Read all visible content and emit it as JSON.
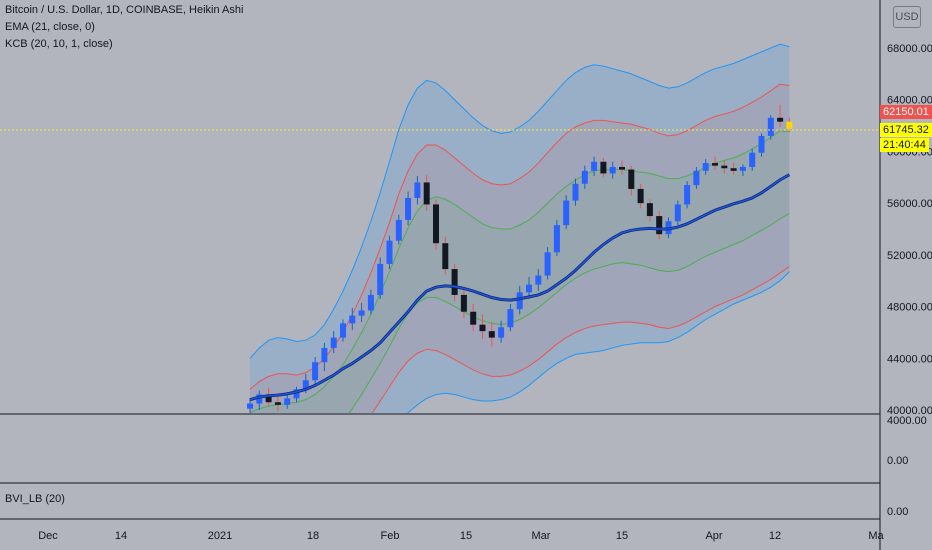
{
  "legend": {
    "main": "Bitcoin / U.S. Dollar, 1D, COINBASE, Heikin Ashi",
    "ema": "EMA (21, close, 0)",
    "kcb": "KCB (20, 10, 1, close)",
    "bvi": "BVI_LB (20)"
  },
  "currency_label": "USD",
  "price_tags": {
    "close": "62150.01",
    "last": "61745.32",
    "countdown": "21:40:44"
  },
  "colors": {
    "up": "#2962ff",
    "down": "#131722",
    "ema": "#1e53e5",
    "kcb_outer": "#2196f3",
    "kcb_mid": "#ef5350",
    "kcb_inner": "#4caf50",
    "crosshair": "#ffeb3b",
    "price_tag_bg": "#ef5350",
    "last_tag_bg": "#ffff00"
  },
  "chart_data": {
    "type": "candlestick",
    "price_axis": {
      "min": 40000,
      "max": 68000,
      "ticks": [
        "68000.00",
        "64000.00",
        "60000.00",
        "56000.00",
        "52000.00",
        "48000.00",
        "44000.00",
        "40000.00"
      ]
    },
    "sub_axis_1_ticks": [
      "4000.00",
      "0.00"
    ],
    "sub_axis_2_ticks": [
      "0.00"
    ],
    "time_labels": [
      "Dec",
      "14",
      "2021",
      "18",
      "Feb",
      "15",
      "Mar",
      "15",
      "Apr",
      "12",
      "Ma"
    ],
    "ohlc": [
      [
        40100,
        40900,
        39800,
        40500
      ],
      [
        40500,
        41500,
        40000,
        41200
      ],
      [
        41200,
        41700,
        40300,
        40600
      ],
      [
        40600,
        41100,
        39900,
        40400
      ],
      [
        40400,
        41200,
        40100,
        40900
      ],
      [
        40900,
        41800,
        40600,
        41600
      ],
      [
        41600,
        42800,
        41300,
        42300
      ],
      [
        42300,
        44100,
        42000,
        43700
      ],
      [
        43700,
        45200,
        43000,
        44800
      ],
      [
        44800,
        46100,
        44400,
        45600
      ],
      [
        45600,
        47000,
        45300,
        46700
      ],
      [
        46700,
        47900,
        46200,
        47300
      ],
      [
        47300,
        48300,
        46800,
        47700
      ],
      [
        47700,
        49300,
        47400,
        48900
      ],
      [
        48900,
        51800,
        48600,
        51300
      ],
      [
        51300,
        53500,
        50900,
        53100
      ],
      [
        53100,
        55100,
        52800,
        54700
      ],
      [
        54700,
        56900,
        54300,
        56400
      ],
      [
        56400,
        58100,
        55900,
        57600
      ],
      [
        57600,
        58200,
        55400,
        55900
      ],
      [
        55900,
        56300,
        52400,
        52900
      ],
      [
        52900,
        53400,
        50500,
        50900
      ],
      [
        50900,
        51300,
        48400,
        48900
      ],
      [
        48900,
        49300,
        47100,
        47600
      ],
      [
        47600,
        48200,
        46100,
        46600
      ],
      [
        46600,
        47400,
        45500,
        46100
      ],
      [
        46100,
        46800,
        44900,
        45600
      ],
      [
        45600,
        46900,
        45200,
        46400
      ],
      [
        46400,
        48200,
        46100,
        47800
      ],
      [
        47800,
        49600,
        47400,
        49100
      ],
      [
        49100,
        50300,
        48600,
        49700
      ],
      [
        49700,
        50900,
        49200,
        50400
      ],
      [
        50400,
        52600,
        50100,
        52200
      ],
      [
        52200,
        54700,
        51900,
        54300
      ],
      [
        54300,
        56600,
        54000,
        56200
      ],
      [
        56200,
        57900,
        55800,
        57500
      ],
      [
        57500,
        58900,
        57100,
        58500
      ],
      [
        58500,
        59600,
        58100,
        59200
      ],
      [
        59200,
        59500,
        58000,
        58300
      ],
      [
        58300,
        59200,
        57900,
        58800
      ],
      [
        58800,
        59300,
        58200,
        58600
      ],
      [
        58600,
        58900,
        56600,
        57100
      ],
      [
        57100,
        57500,
        55600,
        56000
      ],
      [
        56000,
        56300,
        54600,
        55000
      ],
      [
        55000,
        55400,
        53200,
        53600
      ],
      [
        53600,
        54900,
        53300,
        54600
      ],
      [
        54600,
        56200,
        54300,
        55900
      ],
      [
        55900,
        57700,
        55600,
        57400
      ],
      [
        57400,
        58800,
        57100,
        58500
      ],
      [
        58500,
        59400,
        58200,
        59100
      ],
      [
        59100,
        59600,
        58600,
        58900
      ],
      [
        58900,
        59300,
        58300,
        58700
      ],
      [
        58700,
        59100,
        58200,
        58500
      ],
      [
        58500,
        59000,
        58100,
        58800
      ],
      [
        58800,
        60200,
        58500,
        59900
      ],
      [
        59900,
        61400,
        59600,
        61200
      ],
      [
        61200,
        62800,
        60900,
        62600
      ],
      [
        62600,
        63600,
        61900,
        62300
      ],
      [
        62300,
        62600,
        61500,
        61745
      ]
    ],
    "ema": [
      40800,
      41000,
      41100,
      41150,
      41250,
      41400,
      41600,
      41900,
      42300,
      42700,
      43200,
      43600,
      44100,
      44600,
      45200,
      46000,
      46800,
      47600,
      48500,
      49200,
      49500,
      49600,
      49550,
      49400,
      49200,
      48950,
      48700,
      48550,
      48500,
      48600,
      48750,
      48900,
      49200,
      49700,
      50200,
      50800,
      51500,
      52200,
      52800,
      53300,
      53700,
      53900,
      54000,
      54050,
      54000,
      54000,
      54150,
      54400,
      54750,
      55100,
      55450,
      55700,
      55950,
      56150,
      56400,
      56800,
      57300,
      57800,
      58200
    ],
    "kcb_outer_upper": [
      44000,
      44800,
      45400,
      45600,
      45500,
      45300,
      45400,
      45800,
      46600,
      47800,
      49200,
      50800,
      52600,
      54600,
      56800,
      59200,
      61700,
      63600,
      64900,
      65500,
      65300,
      64700,
      64000,
      63300,
      62600,
      62000,
      61600,
      61400,
      61500,
      61900,
      62400,
      63100,
      63900,
      64700,
      65500,
      66100,
      66500,
      66700,
      66600,
      66400,
      66200,
      66000,
      65700,
      65400,
      65100,
      64900,
      65000,
      65300,
      65700,
      66100,
      66400,
      66600,
      66800,
      67100,
      67400,
      67700,
      68000,
      68300,
      68100
    ],
    "kcb_mid_upper": [
      41600,
      42200,
      42600,
      42800,
      42800,
      42700,
      42900,
      43300,
      44000,
      44900,
      46000,
      47400,
      48900,
      50600,
      52500,
      54500,
      56700,
      58500,
      59800,
      60500,
      60500,
      60100,
      59500,
      58900,
      58300,
      57800,
      57500,
      57400,
      57500,
      57900,
      58400,
      59100,
      59900,
      60700,
      61400,
      61900,
      62200,
      62400,
      62400,
      62300,
      62200,
      62100,
      61900,
      61700,
      61400,
      61200,
      61300,
      61600,
      62000,
      62400,
      62700,
      62900,
      63100,
      63400,
      63800,
      64200,
      64700,
      65200,
      65100
    ],
    "kcb_inner_upper": [
      39800,
      40100,
      40300,
      40400,
      40500,
      40600,
      40800,
      41200,
      41800,
      42600,
      43500,
      44700,
      46000,
      47400,
      49000,
      50700,
      52500,
      54100,
      55400,
      56200,
      56500,
      56300,
      55900,
      55400,
      54900,
      54400,
      54100,
      54000,
      54000,
      54300,
      54700,
      55300,
      56000,
      56700,
      57300,
      57800,
      58200,
      58500,
      58600,
      58600,
      58600,
      58500,
      58400,
      58300,
      58100,
      57900,
      57900,
      58100,
      58400,
      58800,
      59100,
      59300,
      59500,
      59800,
      60200,
      60600,
      61100,
      61600,
      61500
    ],
    "kcb_inner_lower": [
      36000,
      36200,
      36300,
      36400,
      36500,
      36600,
      36800,
      37100,
      37600,
      38300,
      39100,
      40100,
      41200,
      42400,
      43600,
      44900,
      46300,
      47500,
      48300,
      48700,
      48700,
      48400,
      48000,
      47600,
      47200,
      46900,
      46700,
      46600,
      46700,
      47000,
      47400,
      47900,
      48500,
      49100,
      49700,
      50200,
      50600,
      50900,
      51100,
      51300,
      51400,
      51300,
      51200,
      51000,
      50800,
      50700,
      50800,
      51100,
      51500,
      51900,
      52200,
      52500,
      52800,
      53100,
      53500,
      53900,
      54300,
      54800,
      55200
    ],
    "kcb_mid_lower": [
      33800,
      33900,
      33900,
      33900,
      34000,
      34100,
      34300,
      34600,
      35100,
      35700,
      36500,
      37500,
      38500,
      39600,
      40700,
      41800,
      42900,
      43800,
      44400,
      44700,
      44600,
      44300,
      43900,
      43500,
      43100,
      42800,
      42600,
      42600,
      42700,
      43000,
      43400,
      43900,
      44500,
      45100,
      45600,
      46000,
      46300,
      46500,
      46600,
      46700,
      46800,
      46800,
      46700,
      46600,
      46400,
      46300,
      46500,
      46800,
      47200,
      47600,
      48000,
      48300,
      48600,
      48900,
      49300,
      49700,
      50100,
      50600,
      51100
    ],
    "kcb_outer_lower": [
      31000,
      31000,
      31000,
      31000,
      31100,
      31200,
      31400,
      31700,
      32200,
      32900,
      33700,
      34600,
      35600,
      36500,
      37400,
      38300,
      39100,
      39800,
      40400,
      40900,
      41200,
      41300,
      41200,
      41000,
      40800,
      40700,
      40700,
      40800,
      41000,
      41400,
      41900,
      42500,
      43100,
      43600,
      44000,
      44300,
      44400,
      44500,
      44600,
      44800,
      45000,
      45100,
      45200,
      45200,
      45200,
      45300,
      45600,
      46000,
      46500,
      47000,
      47400,
      47800,
      48200,
      48500,
      48800,
      49100,
      49500,
      50000,
      50700
    ]
  }
}
